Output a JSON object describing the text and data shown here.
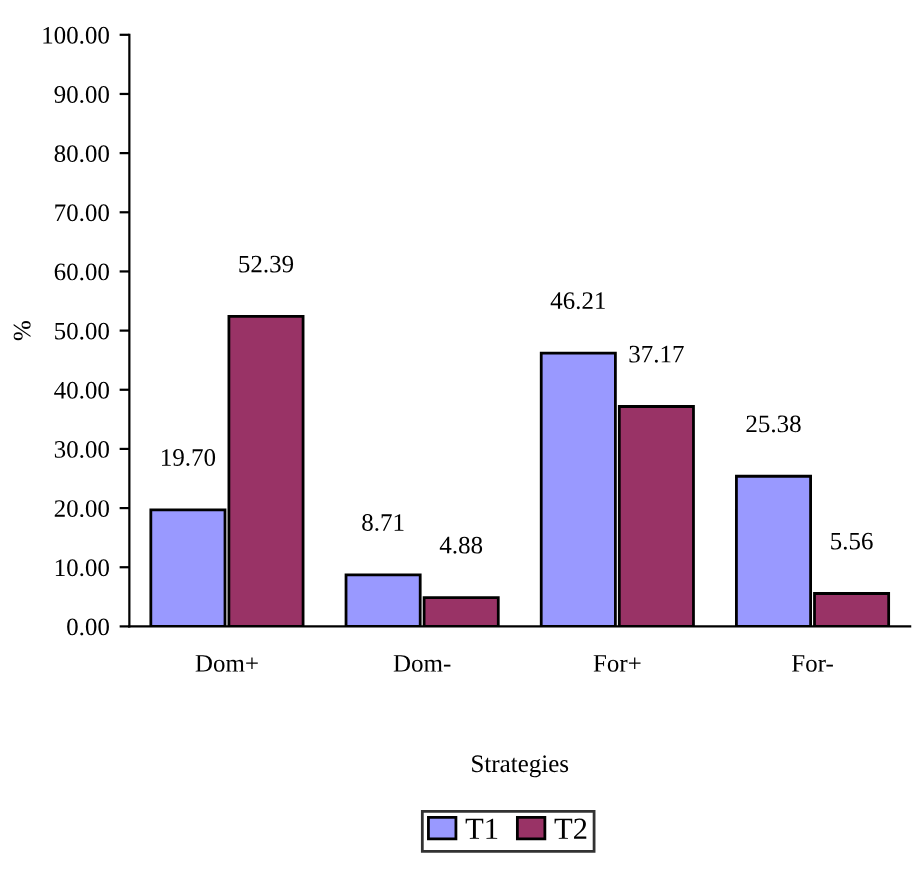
{
  "chart_data": {
    "type": "bar",
    "categories": [
      "Dom+",
      "Dom-",
      "For+",
      "For-"
    ],
    "series": [
      {
        "name": "T1",
        "color": "#9999ff",
        "values": [
          19.7,
          8.71,
          46.21,
          25.38
        ],
        "value_labels": [
          "19.70",
          "8.71",
          "46.21",
          "25.38"
        ]
      },
      {
        "name": "T2",
        "color": "#993366",
        "values": [
          52.39,
          4.88,
          37.17,
          5.56
        ],
        "value_labels": [
          "52.39",
          "4.88",
          "37.17",
          "5.56"
        ]
      }
    ],
    "xlabel": "Strategies",
    "ylabel": "%",
    "ylim": [
      0,
      100
    ],
    "yticks": [
      {
        "value": 0,
        "label": "0.00"
      },
      {
        "value": 10,
        "label": "10.00"
      },
      {
        "value": 20,
        "label": "20.00"
      },
      {
        "value": 30,
        "label": "30.00"
      },
      {
        "value": 40,
        "label": "40.00"
      },
      {
        "value": 50,
        "label": "50.00"
      },
      {
        "value": 60,
        "label": "60.00"
      },
      {
        "value": 70,
        "label": "70.00"
      },
      {
        "value": 80,
        "label": "80.00"
      },
      {
        "value": 90,
        "label": "90.00"
      },
      {
        "value": 100,
        "label": "100.00"
      }
    ],
    "legend": "bottom",
    "grid": false
  }
}
